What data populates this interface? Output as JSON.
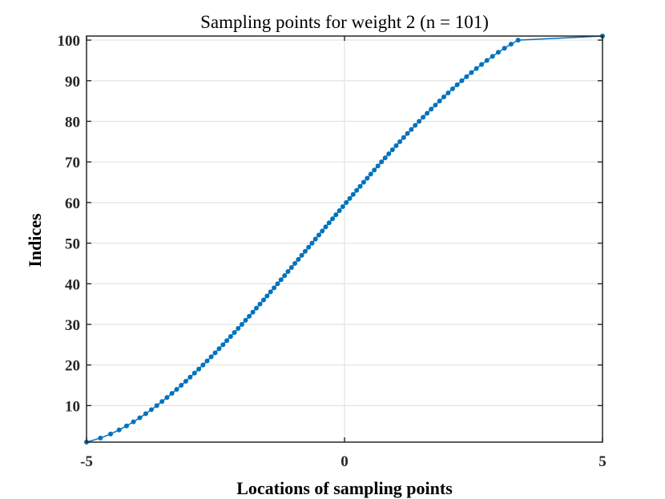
{
  "chart_data": {
    "type": "line",
    "title": "Sampling points for weight 2  (n = 101)",
    "xlabel": "Locations of sampling points",
    "ylabel": "Indices",
    "xlim": [
      -5,
      5
    ],
    "ylim": [
      1,
      101
    ],
    "xticks": [
      -5,
      0,
      5
    ],
    "yticks": [
      10,
      20,
      30,
      40,
      50,
      60,
      70,
      80,
      90,
      100
    ],
    "xtick_labels": [
      "-5",
      "0",
      "5"
    ],
    "ytick_labels": [
      "10",
      "20",
      "30",
      "40",
      "50",
      "60",
      "70",
      "80",
      "90",
      "100"
    ],
    "grid": true,
    "series": [
      {
        "name": "sampling points",
        "color": "#0072BD",
        "marker": "filled-circle",
        "n": 101,
        "x": [
          -5.0,
          -4.731,
          -4.534,
          -4.369,
          -4.224,
          -4.091,
          -3.968,
          -3.853,
          -3.743,
          -3.638,
          -3.537,
          -3.44,
          -3.345,
          -3.253,
          -3.164,
          -3.076,
          -2.991,
          -2.907,
          -2.824,
          -2.743,
          -2.663,
          -2.585,
          -2.507,
          -2.431,
          -2.355,
          -2.281,
          -2.207,
          -2.134,
          -2.061,
          -1.989,
          -1.918,
          -1.847,
          -1.777,
          -1.708,
          -1.638,
          -1.569,
          -1.501,
          -1.433,
          -1.365,
          -1.297,
          -1.23,
          -1.162,
          -1.095,
          -1.028,
          -0.962,
          -0.895,
          -0.829,
          -0.762,
          -0.696,
          -0.63,
          -0.564,
          -0.497,
          -0.431,
          -0.365,
          -0.299,
          -0.232,
          -0.166,
          -0.099,
          -0.033,
          0.034,
          0.101,
          0.168,
          0.236,
          0.303,
          0.371,
          0.44,
          0.508,
          0.577,
          0.647,
          0.717,
          0.787,
          0.858,
          0.929,
          1.001,
          1.073,
          1.146,
          1.22,
          1.295,
          1.37,
          1.446,
          1.523,
          1.601,
          1.68,
          1.761,
          1.842,
          1.925,
          2.009,
          2.095,
          2.183,
          2.273,
          2.365,
          2.459,
          2.556,
          2.656,
          2.76,
          2.868,
          2.981,
          3.1,
          3.228,
          3.365,
          5.0
        ]
      }
    ]
  }
}
